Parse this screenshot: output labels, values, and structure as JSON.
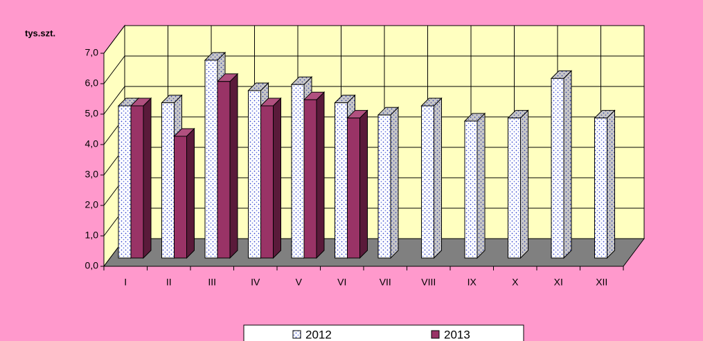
{
  "chart_data": {
    "type": "bar",
    "y_label": "tys.szt.",
    "categories": [
      "I",
      "II",
      "III",
      "IV",
      "V",
      "VI",
      "VII",
      "VIII",
      "IX",
      "X",
      "XI",
      "XII"
    ],
    "series": [
      {
        "name": "2012",
        "color": "#ffffff",
        "values": [
          5.0,
          5.1,
          6.5,
          5.5,
          5.7,
          5.1,
          4.7,
          5.0,
          4.5,
          4.6,
          5.9,
          4.6
        ]
      },
      {
        "name": "2013",
        "color": "#993366",
        "values": [
          5.0,
          4.0,
          5.8,
          5.0,
          5.2,
          4.6,
          null,
          null,
          null,
          null,
          null,
          null
        ]
      }
    ],
    "ylim": [
      0,
      7
    ],
    "yticks": [
      {
        "value": 0,
        "label": "0,0"
      },
      {
        "value": 1,
        "label": "1,0"
      },
      {
        "value": 2,
        "label": "2,0"
      },
      {
        "value": 3,
        "label": "3,0"
      },
      {
        "value": 4,
        "label": "4,0"
      },
      {
        "value": 5,
        "label": "5,0"
      },
      {
        "value": 6,
        "label": "6,0"
      },
      {
        "value": 7,
        "label": "7,0"
      }
    ],
    "grid": true
  }
}
